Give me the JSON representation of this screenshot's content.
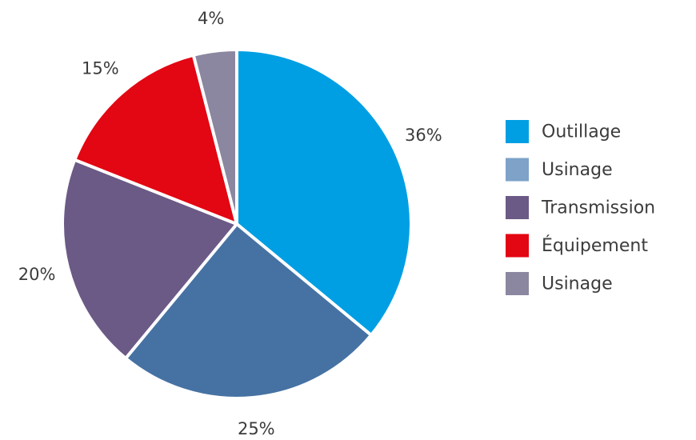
{
  "chart_data": {
    "type": "pie",
    "categories": [
      "Outillage",
      "Usinage",
      "Transmission",
      "Équipement",
      "Usinage"
    ],
    "values": [
      36,
      25,
      20,
      15,
      4
    ],
    "value_labels": [
      "36%",
      "25%",
      "20%",
      "15%",
      "4%"
    ],
    "colors": [
      "#009fe3",
      "#4672a3",
      "#6b5a86",
      "#e30613",
      "#8b87a0"
    ],
    "legend_colors": [
      "#009fe3",
      "#7ea2c8",
      "#6b5a86",
      "#e30613",
      "#8b87a0"
    ],
    "legend_position": "right",
    "start_angle": "top",
    "direction": "clockwise"
  }
}
